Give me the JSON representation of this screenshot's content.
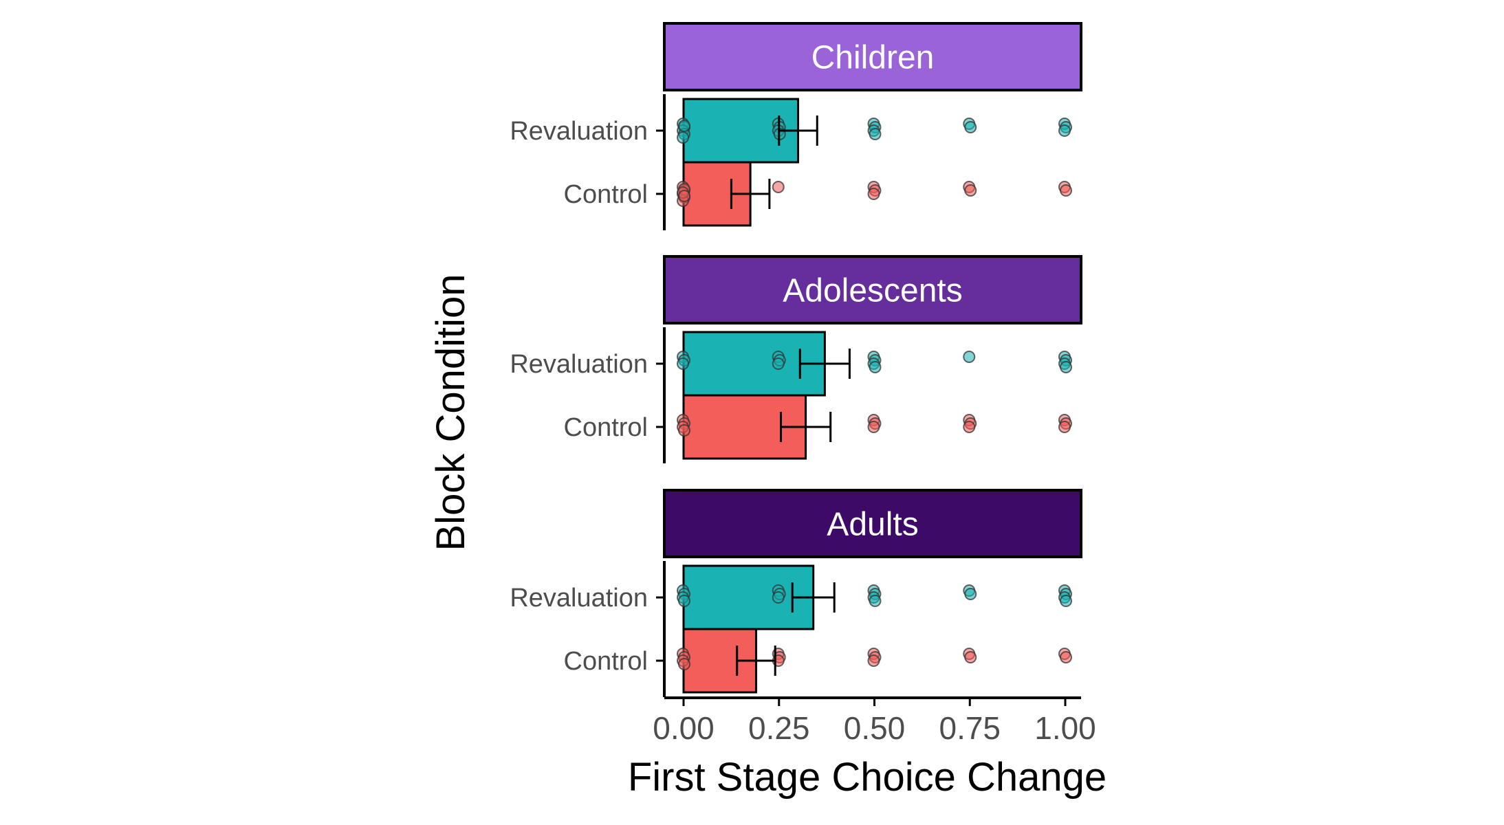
{
  "chart_data": {
    "type": "bar",
    "orientation": "horizontal",
    "xlabel": "First Stage Choice Change",
    "ylabel": "Block Condition",
    "xlim": [
      0,
      1
    ],
    "x_ticks": [
      "0.00",
      "0.25",
      "0.50",
      "0.75",
      "1.00"
    ],
    "x_tick_values": [
      0,
      0.25,
      0.5,
      0.75,
      1
    ],
    "categories": [
      "Revaluation",
      "Control"
    ],
    "colors": {
      "Revaluation": "#1AB3B3",
      "Control": "#F35D5A",
      "strip_children": "#9B63D8",
      "strip_adolescents": "#662D9C",
      "strip_adults": "#3D0A68"
    },
    "panels": [
      {
        "name": "Children",
        "series": [
          {
            "category": "Revaluation",
            "mean": 0.3,
            "se": 0.05,
            "points": [
              0,
              0,
              0,
              0,
              0,
              0,
              0.25,
              0.25,
              0.25,
              0.25,
              0.5,
              0.5,
              0.5,
              0.5,
              0.75,
              0.75,
              1,
              1,
              1
            ]
          },
          {
            "category": "Control",
            "mean": 0.175,
            "se": 0.05,
            "points": [
              0,
              0,
              0,
              0,
              0,
              0,
              0,
              0,
              0.25,
              0.5,
              0.5,
              0.5,
              0.75,
              0.75,
              1,
              1
            ]
          }
        ]
      },
      {
        "name": "Adolescents",
        "series": [
          {
            "category": "Revaluation",
            "mean": 0.37,
            "se": 0.065,
            "points": [
              0,
              0,
              0,
              0.25,
              0.25,
              0.25,
              0.5,
              0.5,
              0.5,
              0.5,
              0.75,
              1,
              1,
              1,
              1
            ]
          },
          {
            "category": "Control",
            "mean": 0.32,
            "se": 0.065,
            "points": [
              0,
              0,
              0,
              0,
              0.5,
              0.5,
              0.5,
              0.75,
              0.75,
              0.75,
              1,
              1,
              1
            ]
          }
        ]
      },
      {
        "name": "Adults",
        "series": [
          {
            "category": "Revaluation",
            "mean": 0.34,
            "se": 0.055,
            "points": [
              0,
              0,
              0,
              0,
              0.25,
              0.25,
              0.25,
              0.5,
              0.5,
              0.5,
              0.5,
              0.75,
              0.75,
              1,
              1,
              1,
              1
            ]
          },
          {
            "category": "Control",
            "mean": 0.19,
            "se": 0.05,
            "points": [
              0,
              0,
              0,
              0,
              0.25,
              0.25,
              0.25,
              0.5,
              0.5,
              0.5,
              0.75,
              0.75,
              1,
              1
            ]
          }
        ]
      }
    ]
  }
}
